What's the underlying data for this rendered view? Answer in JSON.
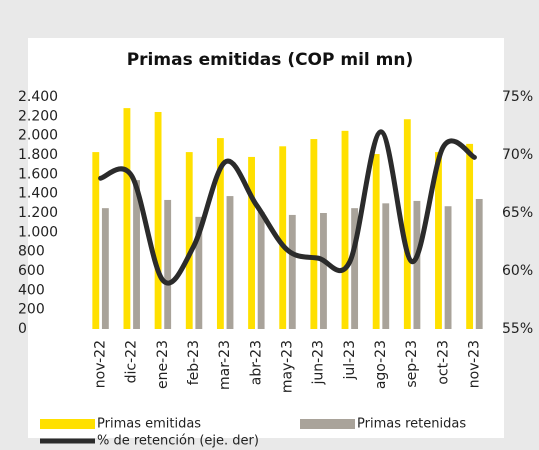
{
  "chart_data": {
    "type": "bar_line",
    "title": "Primas emitidas (COP mil mn)",
    "categories": [
      "nov-22",
      "dic-22",
      "ene-23",
      "feb-23",
      "mar-23",
      "abr-23",
      "may-23",
      "jun-23",
      "jul-23",
      "ago-23",
      "sep-23",
      "oct-23",
      "nov-23"
    ],
    "series": [
      {
        "name": "Primas emitidas",
        "color": "#ffe000",
        "values": [
          1830,
          2285,
          2245,
          1830,
          1975,
          1780,
          1890,
          1965,
          2050,
          1810,
          2170,
          1830,
          1915
        ]
      },
      {
        "name": "Primas retenidas",
        "color": "#a9a39a",
        "values": [
          1250,
          1540,
          1335,
          1160,
          1375,
          1210,
          1180,
          1200,
          1250,
          1300,
          1325,
          1270,
          1345
        ]
      },
      {
        "name": "% de retención (eje. der)",
        "color": "#2b2b2b",
        "axis": "y2",
        "values": [
          68.0,
          68.2,
          59.2,
          62.2,
          69.4,
          65.7,
          61.8,
          61.1,
          60.8,
          72.0,
          60.8,
          70.7,
          69.8
        ]
      }
    ],
    "ylim": [
      0,
      2400
    ],
    "yticks": [
      0,
      200,
      400,
      600,
      800,
      {
        "value": 1000,
        "label": "1.000"
      },
      {
        "value": 1200,
        "label": "1.200"
      },
      {
        "value": 1400,
        "label": "1.400"
      },
      {
        "value": 1600,
        "label": "1.600"
      },
      {
        "value": 1800,
        "label": "1.800"
      },
      {
        "value": 2000,
        "label": "2.000"
      },
      {
        "value": 2200,
        "label": "2.200"
      },
      {
        "value": 2400,
        "label": "2.400"
      }
    ],
    "y2lim": [
      55,
      75
    ],
    "y2ticks": [
      {
        "value": 55,
        "label": "55%"
      },
      {
        "value": 60,
        "label": "60%"
      },
      {
        "value": 65,
        "label": "65%"
      },
      {
        "value": 70,
        "label": "70%"
      },
      {
        "value": 75,
        "label": "75%"
      }
    ]
  }
}
